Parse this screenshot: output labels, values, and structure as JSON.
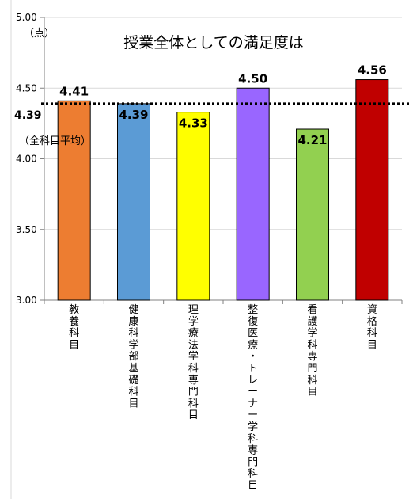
{
  "chart_data": {
    "type": "bar",
    "title": "授業全体としての満足度は",
    "ylabel": "（点）",
    "ylim": [
      3.0,
      5.0
    ],
    "yticks": [
      "3.00",
      "3.50",
      "4.00",
      "4.50",
      "5.00"
    ],
    "categories": [
      "教養科目",
      "健康科学部基礎科目",
      "理学療法学科専門科目",
      "整復医療・トレーナー学科専門科目",
      "看護学科専門科目",
      "資格科目"
    ],
    "values": [
      4.41,
      4.39,
      4.33,
      4.5,
      4.21,
      4.56
    ],
    "value_labels": [
      "4.41",
      "4.39",
      "4.33",
      "4.50",
      "4.21",
      "4.56"
    ],
    "colors": [
      "#ED7D31",
      "#5B9BD5",
      "#FFFF00",
      "#9966FF",
      "#92D050",
      "#C00000"
    ],
    "average": {
      "value": 4.39,
      "value_label": "4.39",
      "label": "（全科目平均）",
      "line_style": "dotted",
      "color": "#000000"
    },
    "grid": true,
    "legend": "none"
  }
}
